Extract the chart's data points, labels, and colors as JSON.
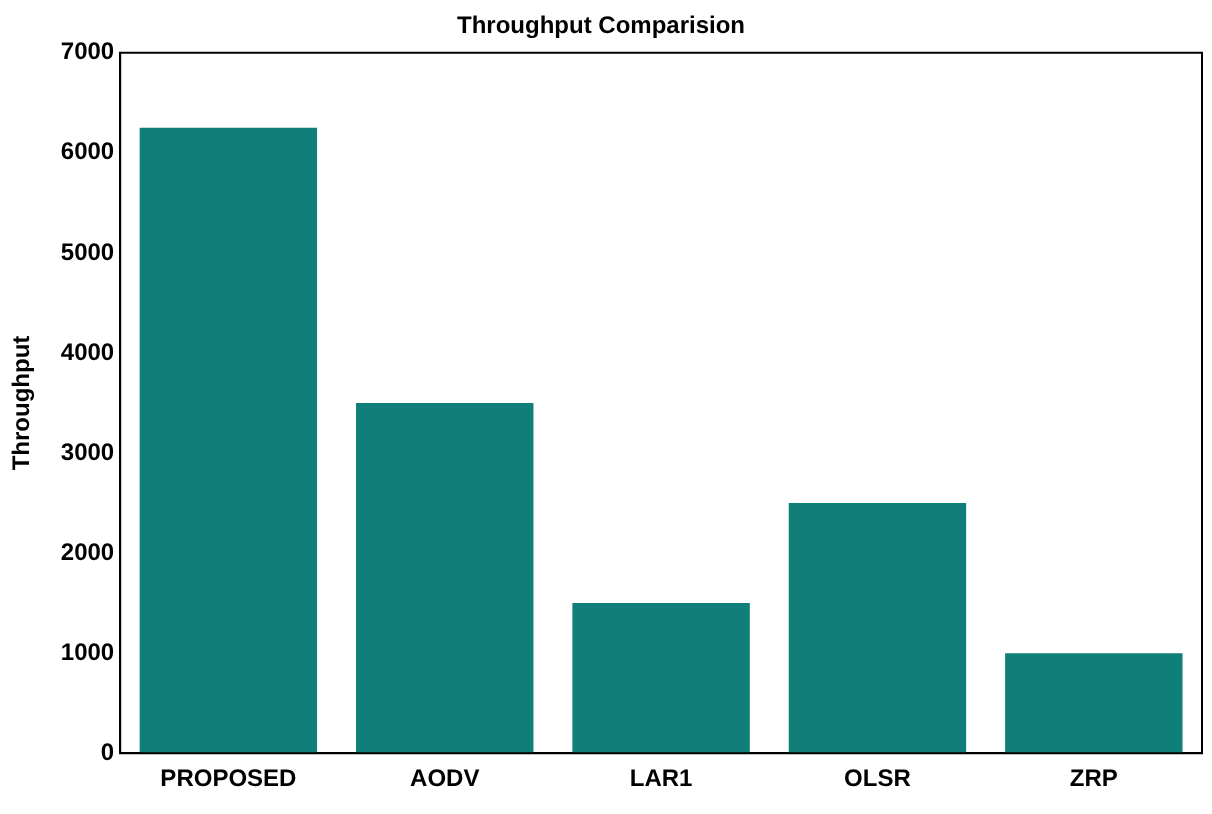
{
  "chart_data": {
    "type": "bar",
    "title": "Throughput Comparision",
    "ylabel": "Throughput",
    "categories": [
      "PROPOSED",
      "AODV",
      "LAR1",
      "OLSR",
      "ZRP"
    ],
    "values": [
      6250,
      3500,
      1500,
      2500,
      1000
    ],
    "color": "#107f7a",
    "ylim": [
      0,
      7000
    ],
    "yticks": [
      0,
      1000,
      2000,
      3000,
      4000,
      5000,
      6000,
      7000
    ],
    "grid": false
  }
}
